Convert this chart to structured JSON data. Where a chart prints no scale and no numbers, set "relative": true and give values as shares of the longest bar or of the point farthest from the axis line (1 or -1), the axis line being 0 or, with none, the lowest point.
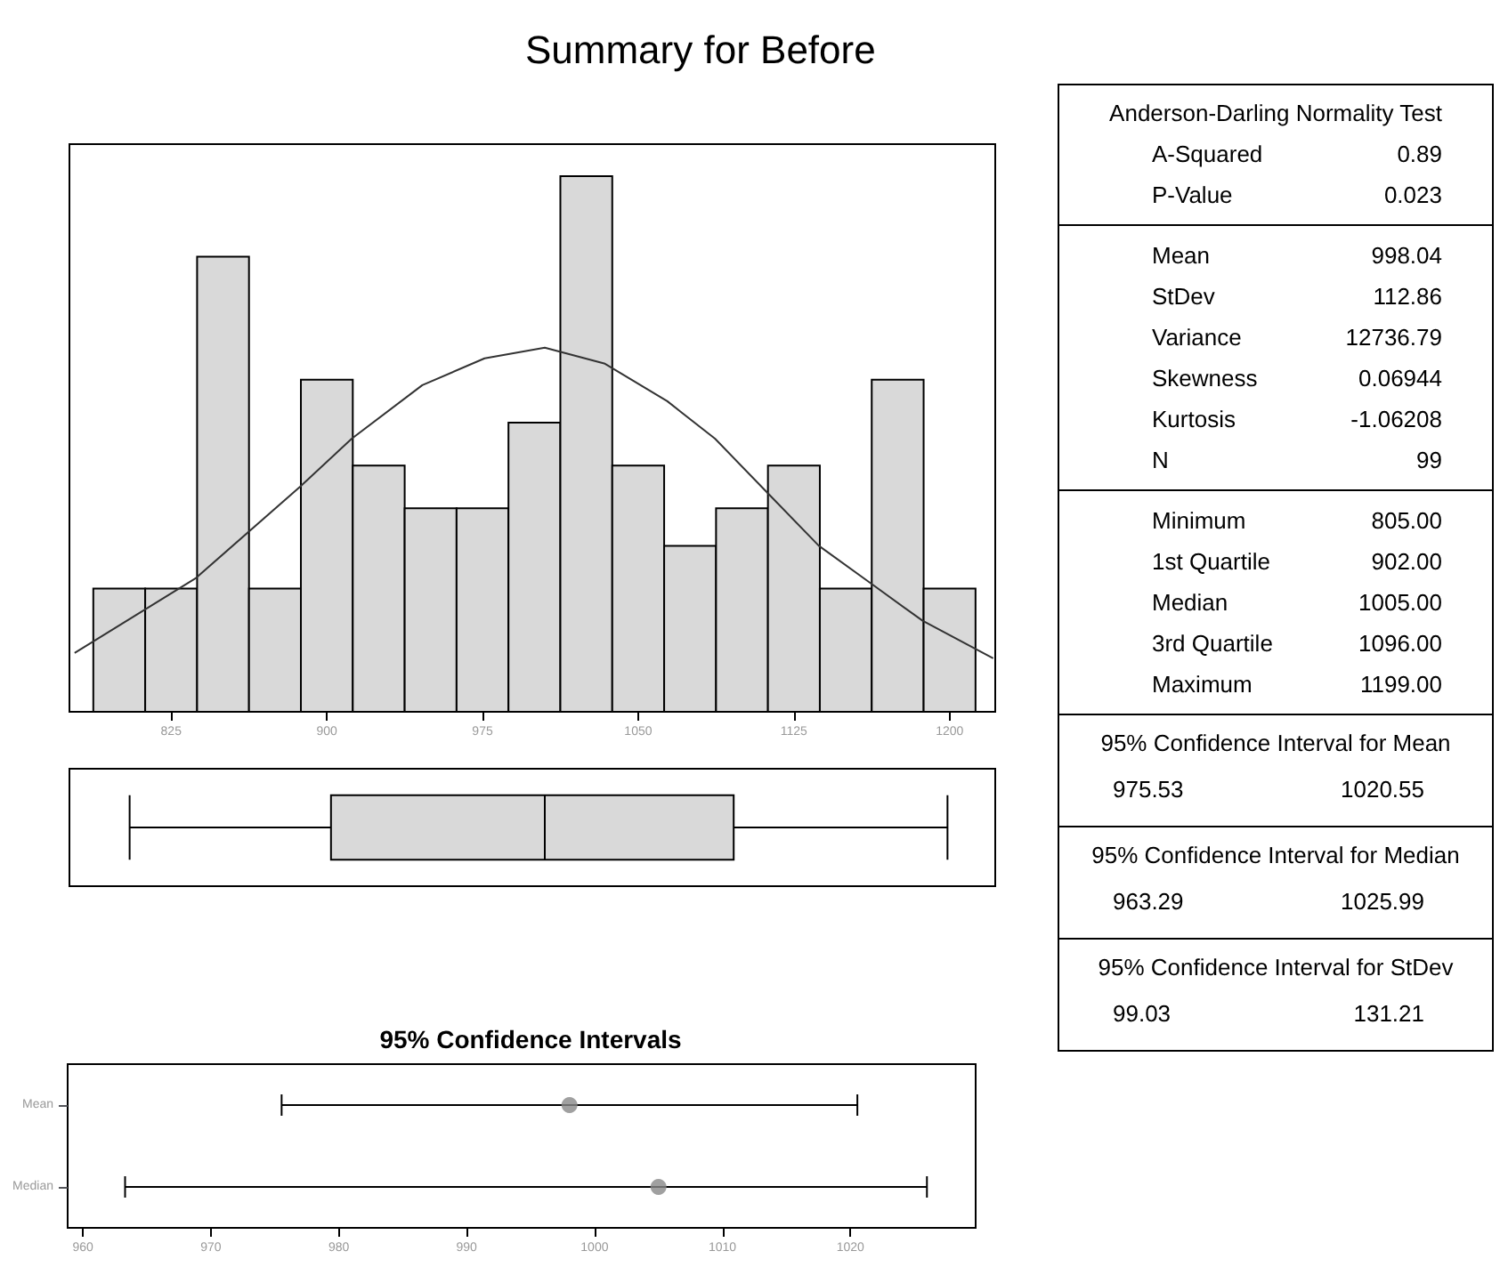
{
  "chart_data": [
    {
      "type": "histogram",
      "title": "Summary for Before",
      "relative": true,
      "bins": [
        787.5,
        812.5,
        837.5,
        862.5,
        887.5,
        912.5,
        937.5,
        962.5,
        987.5,
        1012.5,
        1037.5,
        1062.5,
        1087.5,
        1112.5,
        1137.5,
        1162.5,
        1187.5,
        1212.5
      ],
      "series": [
        {
          "type": "histogram",
          "color": "#d9d9d9",
          "values": [
            0.23,
            0.23,
            0.85,
            0.23,
            0.62,
            0.46,
            0.38,
            0.38,
            0.54,
            1,
            0.46,
            0.31,
            0.38,
            0.46,
            0.23,
            0.62,
            0.23
          ]
        },
        {
          "type": "line",
          "color": "#333333",
          "x": [
            778.5,
            837,
            887,
            912,
            946,
            976,
            1005,
            1034,
            1064,
            1087,
            1112,
            1137,
            1162,
            1187,
            1221
          ],
          "values": [
            0.11,
            0.25,
            0.42,
            0.51,
            0.61,
            0.66,
            0.68,
            0.65,
            0.58,
            0.51,
            0.41,
            0.31,
            0.24,
            0.17,
            0.1
          ]
        }
      ],
      "xlim": [
        776,
        1222
      ],
      "xticks": [
        825,
        900,
        975,
        1050,
        1125,
        1200
      ],
      "grid": false,
      "tick_labels": "x"
    },
    {
      "type": "box",
      "orientation": "horizontal",
      "color": "#d9d9d9",
      "boxes": [
        {
          "low": 805,
          "q1": 902,
          "median": 1005,
          "q3": 1096,
          "high": 1199
        }
      ],
      "xlim": [
        776,
        1222
      ],
      "tick_labels": false
    },
    {
      "type": "scatter",
      "orientation": "horizontal",
      "title": "95% Confidence Intervals",
      "categories": [
        "Mean",
        "Median"
      ],
      "values": [
        998.04,
        1005
      ],
      "errors": [
        [
          975.53,
          1020.55
        ],
        [
          963.29,
          1025.99
        ]
      ],
      "color": "#888888",
      "marker": "circle",
      "xlim": [
        958.8,
        1029.8
      ],
      "xticks": [
        960,
        970,
        980,
        990,
        1000,
        1010,
        1020
      ]
    },
    {
      "type": "other",
      "title": "Anderson-Darling Normality Test",
      "annotations": [
        "A-Squared",
        "0.89",
        "P-Value",
        "0.023"
      ]
    },
    {
      "type": "other",
      "annotations": [
        "Mean",
        "998.04",
        "StDev",
        "112.86",
        "Variance",
        "12736.79",
        "Skewness",
        "0.06944",
        "Kurtosis",
        "-1.06208",
        "N",
        "99"
      ]
    },
    {
      "type": "other",
      "annotations": [
        "Minimum",
        "805.00",
        "1st Quartile",
        "902.00",
        "Median",
        "1005.00",
        "3rd Quartile",
        "1096.00",
        "Maximum",
        "1199.00"
      ]
    },
    {
      "type": "other",
      "title": "95% Confidence Interval for Mean",
      "annotations": [
        "975.53",
        "1020.55"
      ]
    },
    {
      "type": "other",
      "title": "95% Confidence Interval for Median",
      "annotations": [
        "963.29",
        "1025.99"
      ]
    },
    {
      "type": "other",
      "title": "95% Confidence Interval for StDev",
      "annotations": [
        "99.03",
        "131.21"
      ]
    }
  ]
}
